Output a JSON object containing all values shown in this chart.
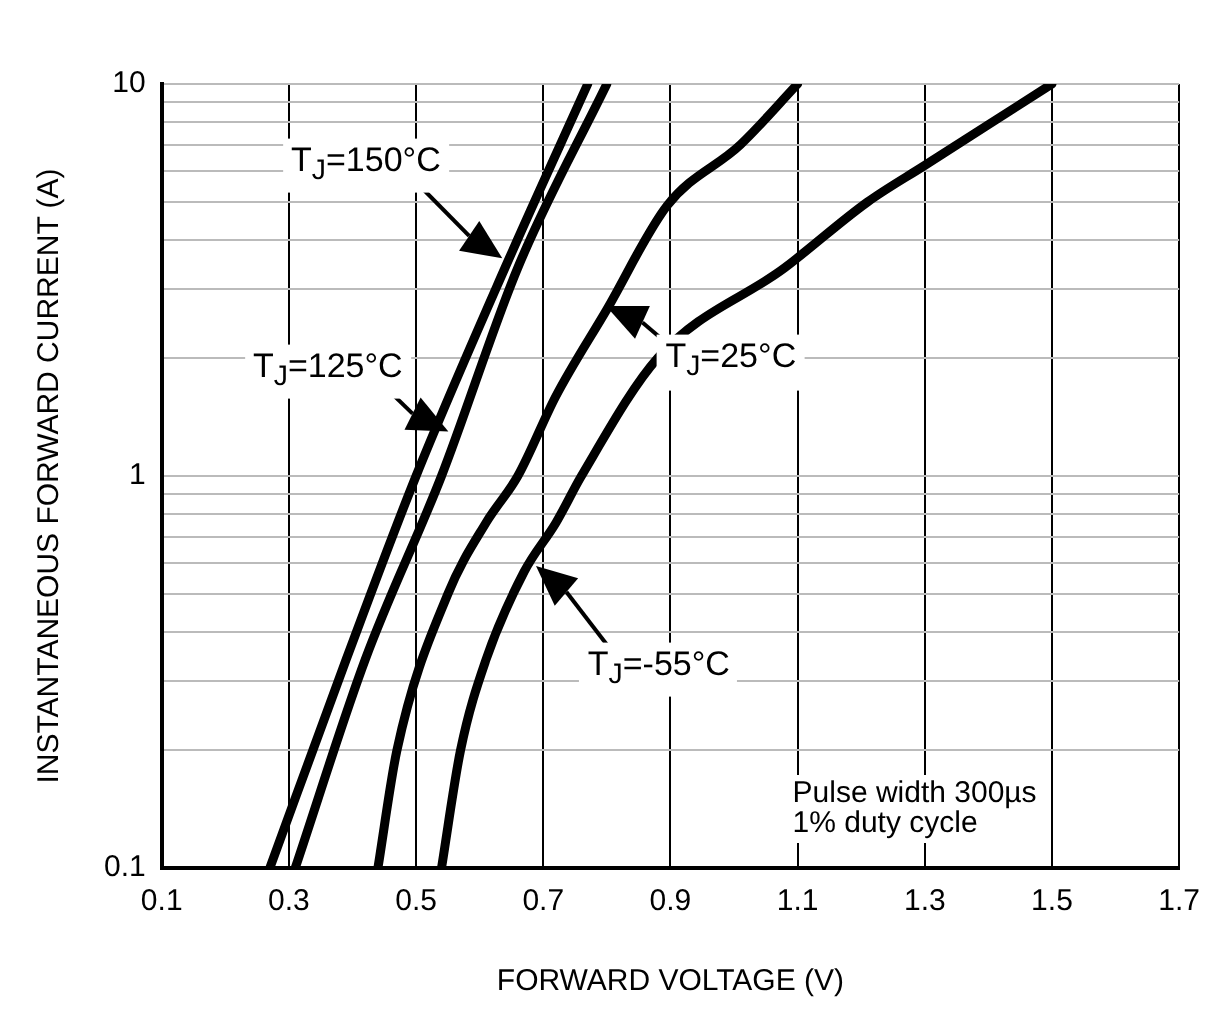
{
  "chart_data": {
    "type": "line",
    "xlabel": "FORWARD VOLTAGE (V)",
    "ylabel": "INSTANTANEOUS FORWARD CURRENT (A)",
    "series": [
      {
        "color": "#000000",
        "x": [
          0.27,
          0.39,
          0.5,
          0.64,
          0.77
        ],
        "values": [
          0.1,
          0.34,
          1,
          3.4,
          10
        ]
      },
      {
        "color": "#000000",
        "x": [
          0.31,
          0.42,
          0.54,
          0.66,
          0.8
        ],
        "values": [
          0.1,
          0.34,
          1,
          3.4,
          10
        ]
      },
      {
        "color": "#000000",
        "x": [
          0.44,
          0.47,
          0.55,
          0.61,
          0.66,
          0.72,
          0.8,
          0.895,
          1.01,
          1.1
        ],
        "values": [
          0.1,
          0.2,
          0.5,
          0.76,
          1,
          1.6,
          2.66,
          4.9,
          7,
          10
        ]
      },
      {
        "color": "#000000",
        "x": [
          0.54,
          0.57,
          0.61,
          0.67,
          0.72,
          0.76,
          0.88,
          1.08,
          1.21,
          1.3,
          1.5
        ],
        "values": [
          0.1,
          0.2,
          0.34,
          0.57,
          0.76,
          1,
          2,
          3.4,
          5,
          6.2,
          10
        ]
      }
    ],
    "xlim": [
      0.1,
      1.7
    ],
    "xticks": [
      0.1,
      0.3,
      0.5,
      0.7,
      0.9,
      1.1,
      1.3,
      1.5,
      1.7
    ],
    "ylim": [
      0.1,
      10
    ],
    "yticks": [
      0.1,
      {
        "value": 0.2,
        "label": null
      },
      {
        "value": 0.3,
        "label": null
      },
      {
        "value": 0.4,
        "label": null
      },
      {
        "value": 0.5,
        "label": null
      },
      {
        "value": 0.6,
        "label": null
      },
      {
        "value": 0.7,
        "label": null
      },
      {
        "value": 0.8,
        "label": null
      },
      {
        "value": 0.9,
        "label": null
      },
      1,
      {
        "value": 2,
        "label": null
      },
      {
        "value": 3,
        "label": null
      },
      {
        "value": 4,
        "label": null
      },
      {
        "value": 5,
        "label": null
      },
      {
        "value": 6,
        "label": null
      },
      {
        "value": 7,
        "label": null
      },
      {
        "value": 8,
        "label": null
      },
      {
        "value": 9,
        "label": null
      },
      10
    ],
    "log": "y",
    "grid": true,
    "legend": false,
    "marker": "none",
    "line_style": "solid",
    "annotations": [
      {
        "text": "T$_{J}$=150°C",
        "x": 0.635,
        "y": 3.6
      },
      {
        "text": "T$_{J}$=125°C",
        "x": 0.55,
        "y": 1.3
      },
      {
        "text": "T$_{J}$=25°C",
        "x": 0.8,
        "y": 2.7
      },
      {
        "text": "T$_{J}$=-55°C",
        "x": 0.69,
        "y": 0.59
      },
      "Pulse width 300µs\n1% duty cycle"
    ]
  }
}
